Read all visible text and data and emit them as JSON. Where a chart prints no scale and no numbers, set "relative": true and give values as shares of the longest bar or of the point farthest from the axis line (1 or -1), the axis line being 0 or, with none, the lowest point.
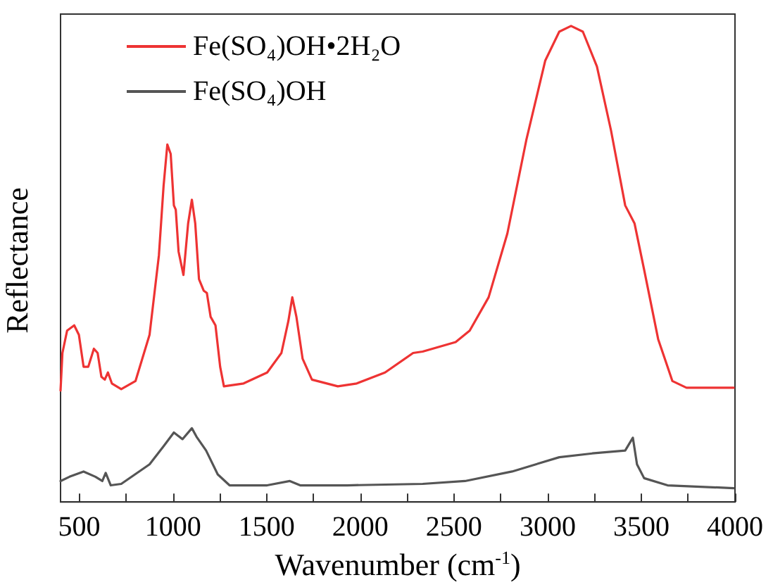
{
  "chart_data": {
    "type": "line",
    "xlabel": "Wavenumber (cm$^{-1}$)",
    "ylabel": "Reflectance",
    "relative": true,
    "xlim": [
      400,
      4000
    ],
    "xticks": [
      500,
      {
        "value": 750,
        "label": null
      },
      1000,
      {
        "value": 1250,
        "label": null
      },
      1500,
      {
        "value": 1750,
        "label": null
      },
      2000,
      {
        "value": 2250,
        "label": null
      },
      2500,
      {
        "value": 2750,
        "label": null
      },
      3000,
      {
        "value": 3250,
        "label": null
      },
      3500,
      {
        "value": 3750,
        "label": null
      },
      4000
    ],
    "grid": false,
    "legend": "top left",
    "marker": "none",
    "line_style": "solid",
    "series": [
      {
        "name": "Fe(SO₄)OH•2H₂O",
        "color": "#ee3333",
        "x": [
          400,
          410,
          435,
          473,
          498,
          523,
          548,
          578,
          598,
          618,
          636,
          653,
          674,
          724,
          800,
          875,
          925,
          950,
          970,
          988,
          1005,
          1015,
          1030,
          1056,
          1081,
          1101,
          1119,
          1139,
          1164,
          1181,
          1201,
          1227,
          1252,
          1272,
          1377,
          1503,
          1579,
          1616,
          1637,
          1659,
          1692,
          1742,
          1880,
          1981,
          2132,
          2282,
          2333,
          2509,
          2584,
          2685,
          2785,
          2886,
          2987,
          3062,
          3125,
          3188,
          3263,
          3338,
          3414,
          3464,
          3515,
          3590,
          3666,
          3741,
          3993
        ],
        "values": [
          0.234,
          0.313,
          0.36,
          0.371,
          0.351,
          0.284,
          0.284,
          0.322,
          0.313,
          0.263,
          0.257,
          0.272,
          0.249,
          0.237,
          0.254,
          0.351,
          0.518,
          0.664,
          0.751,
          0.731,
          0.623,
          0.614,
          0.526,
          0.477,
          0.585,
          0.635,
          0.585,
          0.468,
          0.444,
          0.439,
          0.389,
          0.371,
          0.284,
          0.243,
          0.249,
          0.272,
          0.313,
          0.38,
          0.43,
          0.389,
          0.301,
          0.257,
          0.243,
          0.249,
          0.272,
          0.313,
          0.316,
          0.336,
          0.36,
          0.43,
          0.564,
          0.76,
          0.927,
          0.988,
          1,
          0.988,
          0.915,
          0.781,
          0.623,
          0.585,
          0.488,
          0.342,
          0.254,
          0.24,
          0.24
        ]
      },
      {
        "name": "Fe(SO₄)OH",
        "color": "#555555",
        "x": [
          400,
          448,
          523,
          586,
          623,
          641,
          668,
          724,
          875,
          950,
          1005,
          1051,
          1101,
          1126,
          1177,
          1239,
          1302,
          1503,
          1624,
          1679,
          1931,
          2333,
          2559,
          2810,
          3062,
          3238,
          3414,
          3455,
          3477,
          3515,
          3640,
          3993
        ],
        "values": [
          0.044,
          0.053,
          0.064,
          0.053,
          0.044,
          0.061,
          0.035,
          0.038,
          0.079,
          0.117,
          0.146,
          0.132,
          0.155,
          0.137,
          0.108,
          0.058,
          0.035,
          0.035,
          0.044,
          0.035,
          0.035,
          0.038,
          0.044,
          0.064,
          0.094,
          0.102,
          0.108,
          0.135,
          0.079,
          0.05,
          0.035,
          0.029
        ]
      }
    ]
  }
}
